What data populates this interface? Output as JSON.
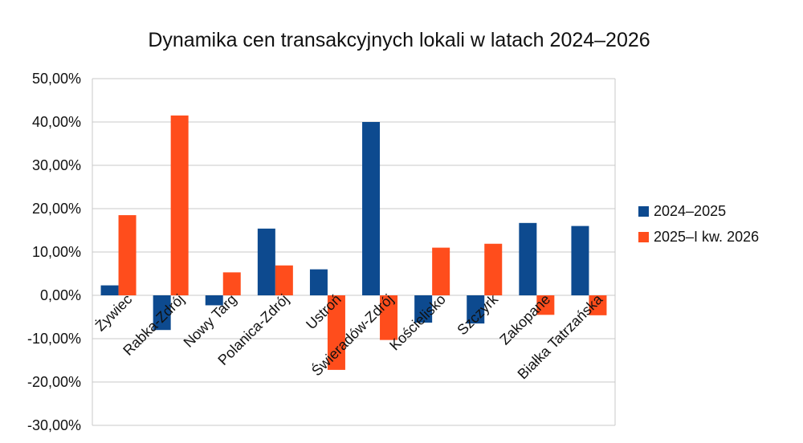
{
  "chart_data": {
    "type": "bar",
    "title": "Dynamika cen transakcyjnych lokali  w latach 2024–2026",
    "categories": [
      "Żywiec",
      "Rabka-Zdrój",
      "Nowy Targ",
      "Polanica-Zdrój",
      "Ustroń",
      "Świeradów-Zdrój",
      "Kościelisko",
      "Szczyrk",
      "Zakopane",
      "Białka Tatrzańska"
    ],
    "series": [
      {
        "name": "2024–2025",
        "color": "#0d4a8f",
        "values": [
          2.3,
          -8.0,
          -2.3,
          15.4,
          6.0,
          40.0,
          -6.3,
          -6.5,
          16.7,
          16.0
        ]
      },
      {
        "name": "2025–I kw. 2026",
        "color": "#ff4d1c",
        "values": [
          18.5,
          41.5,
          5.3,
          6.9,
          -17.2,
          -10.3,
          11.0,
          11.9,
          -4.5,
          -4.6
        ]
      }
    ],
    "ylim": [
      -30,
      50
    ],
    "yticks": [
      "50,00%",
      "40,00%",
      "30,00%",
      "20,00%",
      "10,00%",
      "0,00%",
      "-10,00%",
      "-20,00%",
      "-30,00%"
    ],
    "grid": true,
    "legend_position": "right"
  }
}
